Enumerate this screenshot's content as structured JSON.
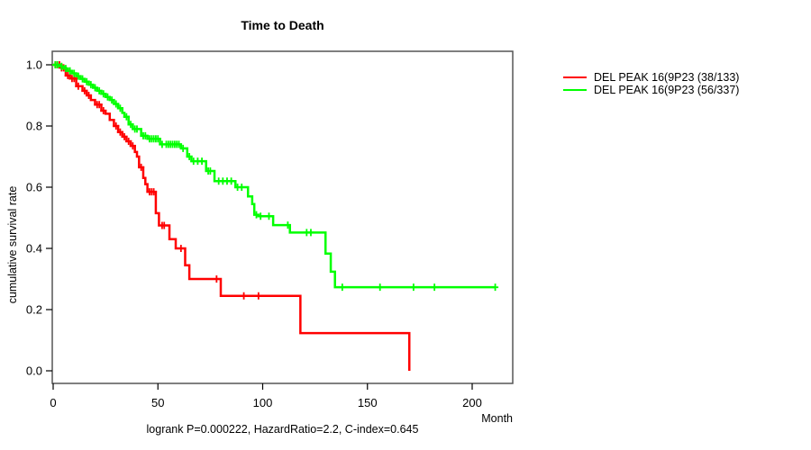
{
  "chart_data": {
    "type": "line",
    "subtype": "kaplan-meier-survival",
    "title": "Time to Death",
    "xlabel": "Month",
    "ylabel": "cumulative survival rate",
    "annotation": "logrank P=0.000222, HazardRatio=2.2, C-index=0.645",
    "xlim": [
      0,
      220
    ],
    "ylim": [
      0.0,
      1.0
    ],
    "xtick_values": [
      0,
      50,
      100,
      150,
      200
    ],
    "xtick_labels": [
      "0",
      "50",
      "100",
      "150",
      "200"
    ],
    "ytick_values": [
      0.0,
      0.2,
      0.4,
      0.6,
      0.8,
      1.0
    ],
    "ytick_labels": [
      "0.0",
      "0.2",
      "0.4",
      "0.6",
      "0.8",
      "1.0"
    ],
    "grid": false,
    "legend_position": "outside-right",
    "series": [
      {
        "name": "DEL PEAK 16(9P23 (38/133)",
        "color": "#FF0000",
        "steps": [
          [
            0,
            1.0
          ],
          [
            4,
            0.99
          ],
          [
            6,
            0.965
          ],
          [
            8,
            0.955
          ],
          [
            11,
            0.93
          ],
          [
            14,
            0.915
          ],
          [
            16,
            0.9
          ],
          [
            18,
            0.885
          ],
          [
            20,
            0.87
          ],
          [
            23,
            0.85
          ],
          [
            25,
            0.84
          ],
          [
            27,
            0.82
          ],
          [
            29,
            0.8
          ],
          [
            31,
            0.78
          ],
          [
            33,
            0.765
          ],
          [
            35,
            0.75
          ],
          [
            37,
            0.735
          ],
          [
            39,
            0.715
          ],
          [
            40,
            0.7
          ],
          [
            41,
            0.665
          ],
          [
            43,
            0.63
          ],
          [
            44,
            0.61
          ],
          [
            45,
            0.585
          ],
          [
            49,
            0.515
          ],
          [
            50.5,
            0.475
          ],
          [
            55.5,
            0.43
          ],
          [
            58.5,
            0.4
          ],
          [
            63,
            0.345
          ],
          [
            65,
            0.3
          ],
          [
            80,
            0.245
          ],
          [
            118,
            0.123
          ],
          [
            170,
            0.0
          ]
        ],
        "censor_months": [
          1,
          2,
          3,
          4,
          5,
          7,
          9,
          10,
          12,
          15,
          17,
          21,
          22,
          24,
          30,
          32,
          34,
          36,
          38,
          42,
          46,
          47,
          48,
          52,
          53,
          61,
          78,
          91,
          98
        ],
        "end_month": 170
      },
      {
        "name": "DEL PEAK 16(9P23 (56/337)",
        "color": "#00FF00",
        "steps": [
          [
            0,
            1.0
          ],
          [
            3,
            0.995
          ],
          [
            5,
            0.988
          ],
          [
            7,
            0.98
          ],
          [
            9,
            0.972
          ],
          [
            11,
            0.963
          ],
          [
            13,
            0.954
          ],
          [
            15,
            0.945
          ],
          [
            17,
            0.935
          ],
          [
            19,
            0.925
          ],
          [
            21,
            0.915
          ],
          [
            23,
            0.905
          ],
          [
            25,
            0.895
          ],
          [
            27,
            0.885
          ],
          [
            29,
            0.872
          ],
          [
            31,
            0.858
          ],
          [
            33,
            0.843
          ],
          [
            34,
            0.83
          ],
          [
            36,
            0.805
          ],
          [
            38,
            0.79
          ],
          [
            42,
            0.768
          ],
          [
            45,
            0.758
          ],
          [
            51,
            0.74
          ],
          [
            61,
            0.727
          ],
          [
            64,
            0.7
          ],
          [
            66,
            0.685
          ],
          [
            73,
            0.653
          ],
          [
            77,
            0.62
          ],
          [
            87,
            0.6
          ],
          [
            93,
            0.57
          ],
          [
            95,
            0.545
          ],
          [
            96,
            0.51
          ],
          [
            98,
            0.505
          ],
          [
            105,
            0.476
          ],
          [
            113,
            0.452
          ],
          [
            130,
            0.383
          ],
          [
            132.5,
            0.324
          ],
          [
            134.5,
            0.273
          ]
        ],
        "censor_months": [
          1,
          2,
          4,
          6,
          8,
          10,
          12,
          14,
          16,
          18,
          20,
          22,
          24,
          26,
          28,
          30,
          32,
          35,
          37,
          39,
          40,
          43,
          44,
          46,
          47,
          48,
          49,
          50,
          52,
          54,
          55,
          56,
          57,
          58,
          59,
          60,
          62,
          65,
          67,
          69,
          71,
          74,
          75,
          79,
          81,
          83,
          85,
          88,
          90,
          97,
          99,
          103,
          112,
          121,
          123,
          138,
          156,
          172,
          182,
          211
        ],
        "end_month": 211
      }
    ],
    "colors": {
      "axis": "#000000",
      "box": "#555555",
      "background": "#ffffff"
    }
  }
}
